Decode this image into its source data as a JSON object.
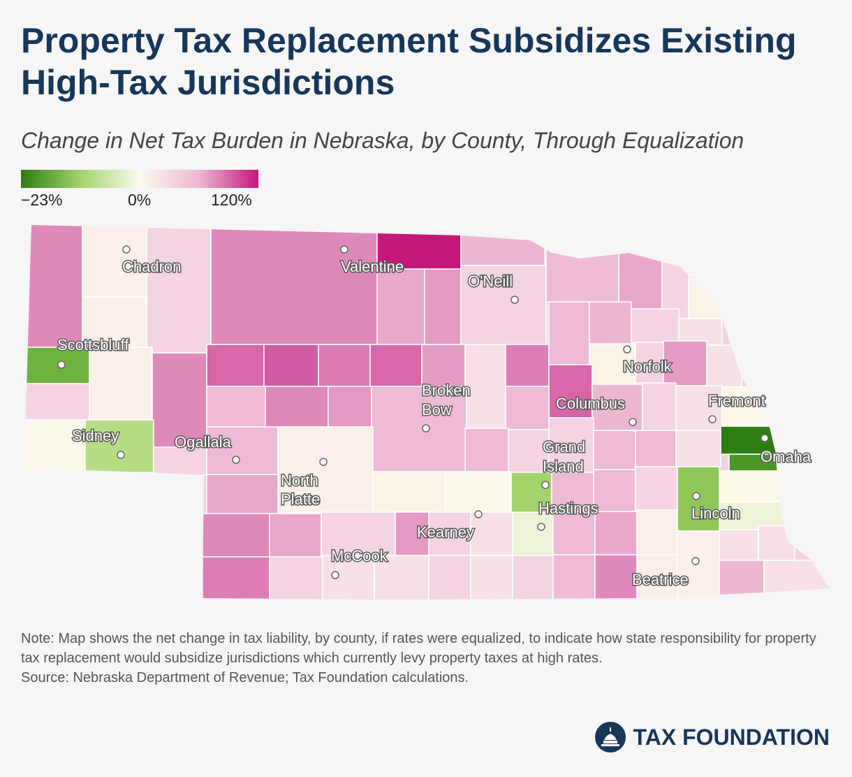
{
  "title": "Property Tax Replacement Subsidizes Existing High-Tax Jurisdictions",
  "subtitle": "Change in Net Tax Burden in Nebraska, by County, Through Equalization",
  "legend": {
    "min_label": "−23%",
    "mid_label": "0%",
    "max_label": "120%",
    "colors": [
      "#2e7d12",
      "#a3d36b",
      "#fbfaef",
      "#edb7d2",
      "#c4177a"
    ]
  },
  "map": {
    "state": "Nebraska",
    "cities": [
      {
        "name": "Chadron",
        "label": "Chadron"
      },
      {
        "name": "Valentine",
        "label": "Valentine"
      },
      {
        "name": "ONeill",
        "label": "O'Neill"
      },
      {
        "name": "Scottsbluff",
        "label": "Scottsbluff"
      },
      {
        "name": "Norfolk",
        "label": "Norfolk"
      },
      {
        "name": "Broken Bow",
        "label_lines": [
          "Broken",
          "Bow"
        ]
      },
      {
        "name": "Columbus",
        "label": "Columbus"
      },
      {
        "name": "Fremont",
        "label": "Fremont"
      },
      {
        "name": "Sidney",
        "label": "Sidney"
      },
      {
        "name": "Ogallala",
        "label": "Ogallala"
      },
      {
        "name": "Grand Island",
        "label_lines": [
          "Grand",
          "Island"
        ]
      },
      {
        "name": "Omaha",
        "label": "Omaha"
      },
      {
        "name": "North Platte",
        "label_lines": [
          "North",
          "Platte"
        ]
      },
      {
        "name": "Hastings",
        "label": "Hastings"
      },
      {
        "name": "Lincoln",
        "label": "Lincoln"
      },
      {
        "name": "Kearney",
        "label": "Kearney"
      },
      {
        "name": "McCook",
        "label": "McCook"
      },
      {
        "name": "Beatrice",
        "label": "Beatrice"
      }
    ]
  },
  "note": "Note: Map shows the net change in tax liability, by county, if rates were equalized, to indicate how state responsibility for property tax replacement would subsidize jurisdictions which currently levy property taxes at high rates.",
  "source": "Source: Nebraska Department of Revenue; Tax Foundation calculations.",
  "brand": "TAX FOUNDATION"
}
